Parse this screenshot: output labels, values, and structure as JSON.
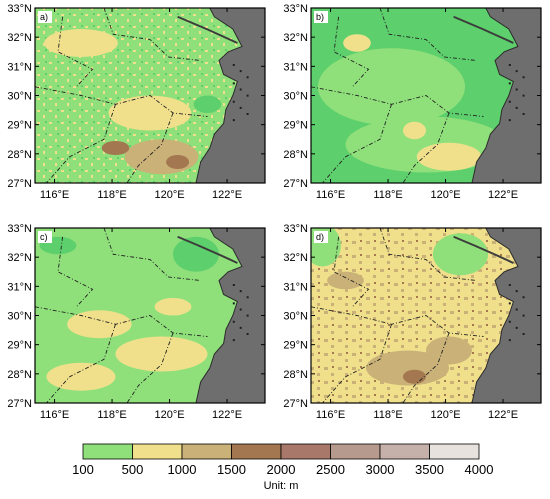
{
  "lat_labels": [
    "33°N",
    "32°N",
    "31°N",
    "30°N",
    "29°N",
    "28°N",
    "27°N"
  ],
  "lon_labels": [
    "116°E",
    "118°E",
    "120°E",
    "122°E"
  ],
  "panels": [
    {
      "label": "a)"
    },
    {
      "label": "b)"
    },
    {
      "label": "c)"
    },
    {
      "label": "d)"
    }
  ],
  "colorbar": {
    "ticks": [
      "100",
      "500",
      "1000",
      "1500",
      "2000",
      "2500",
      "3000",
      "3500",
      "4000"
    ],
    "colors": [
      "#8fe07a",
      "#f0e08c",
      "#c9b178",
      "#a3774f",
      "#a8786a",
      "#b79a8e",
      "#c6b1aa",
      "#e8e2de"
    ],
    "unit_label": "Unit: m"
  },
  "colors": {
    "low_land": "#8fe07a",
    "plain": "#5dcf6c",
    "ocean": "#6e6e6e",
    "frame": "#000000"
  }
}
